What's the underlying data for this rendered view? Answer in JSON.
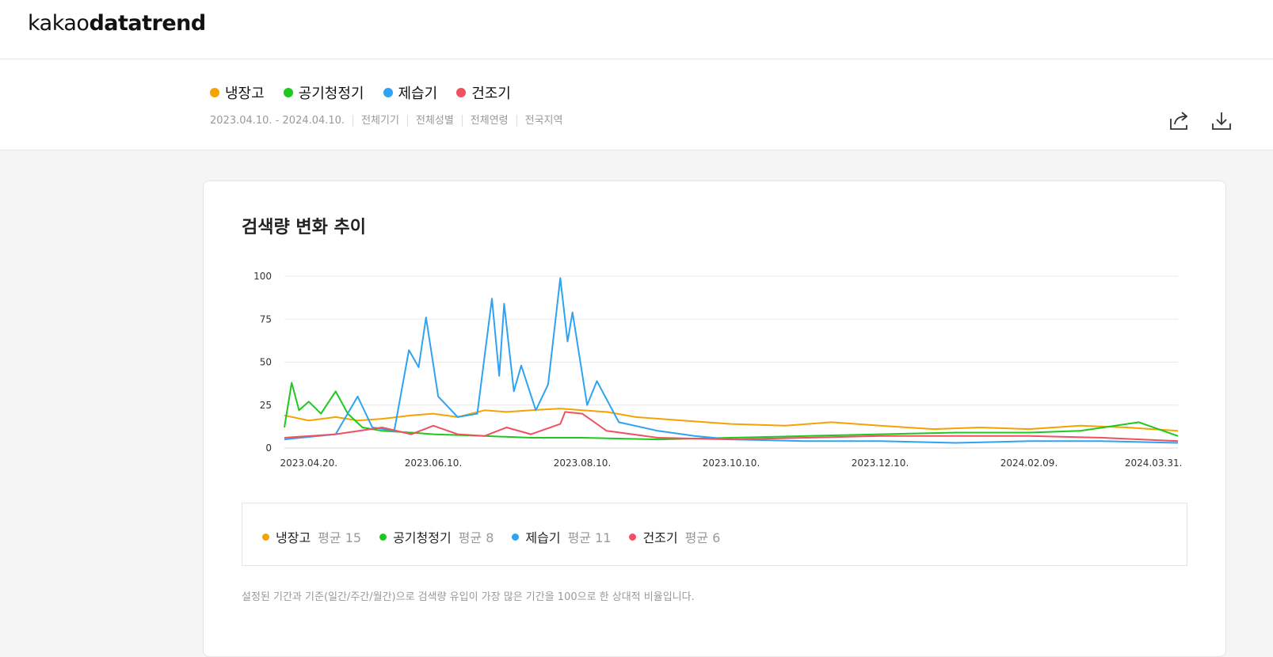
{
  "header": {
    "logo_light": "kakao",
    "logo_bold": "datatrend"
  },
  "keywords": [
    {
      "label": "냉장고",
      "color": "#f5a300"
    },
    {
      "label": "공기청정기",
      "color": "#1ec81e"
    },
    {
      "label": "제습기",
      "color": "#2ea3f2"
    },
    {
      "label": "건조기",
      "color": "#f0505f"
    }
  ],
  "filters": [
    "2023.04.10. - 2024.04.10.",
    "전체기기",
    "전체성별",
    "전체연령",
    "전국지역"
  ],
  "toolbar": {
    "share_icon": "share-icon",
    "download_icon": "download-icon"
  },
  "card": {
    "title": "검색량 변화 추이",
    "legend": [
      {
        "label": "냉장고",
        "avg": "평균 15",
        "color": "#f5a300"
      },
      {
        "label": "공기청정기",
        "avg": "평균 8",
        "color": "#1ec81e"
      },
      {
        "label": "제습기",
        "avg": "평균 11",
        "color": "#2ea3f2"
      },
      {
        "label": "건조기",
        "avg": "평균 6",
        "color": "#f0505f"
      }
    ],
    "note": "설정된 기간과 기준(일간/주간/월간)으로 검색량 유입이 가장 많은 기간을 100으로 한 상대적 비율입니다."
  },
  "chart_data": {
    "type": "line",
    "x_start": "2023-04-10",
    "x_end": "2024-04-10",
    "x_ticks": [
      "2023.04.20.",
      "2023.06.10.",
      "2023.08.10.",
      "2023.10.10.",
      "2023.12.10.",
      "2024.02.09.",
      "2024.03.31."
    ],
    "y_ticks": [
      0,
      25,
      50,
      75,
      100
    ],
    "ylim": [
      0,
      100
    ],
    "grid": true,
    "series": [
      {
        "name": "냉장고",
        "color": "#f5a300",
        "points": [
          [
            "2023-04-10",
            19
          ],
          [
            "2023-04-20",
            16
          ],
          [
            "2023-05-01",
            18
          ],
          [
            "2023-05-10",
            16
          ],
          [
            "2023-05-20",
            17
          ],
          [
            "2023-06-01",
            19
          ],
          [
            "2023-06-10",
            20
          ],
          [
            "2023-06-20",
            18
          ],
          [
            "2023-07-01",
            22
          ],
          [
            "2023-07-10",
            21
          ],
          [
            "2023-07-20",
            22
          ],
          [
            "2023-08-01",
            23
          ],
          [
            "2023-08-10",
            22
          ],
          [
            "2023-08-20",
            21
          ],
          [
            "2023-09-01",
            18
          ],
          [
            "2023-09-20",
            16
          ],
          [
            "2023-10-10",
            14
          ],
          [
            "2023-11-01",
            13
          ],
          [
            "2023-11-20",
            15
          ],
          [
            "2023-12-10",
            13
          ],
          [
            "2024-01-01",
            11
          ],
          [
            "2024-01-20",
            12
          ],
          [
            "2024-02-09",
            11
          ],
          [
            "2024-03-01",
            13
          ],
          [
            "2024-03-20",
            12
          ],
          [
            "2024-04-10",
            10
          ]
        ]
      },
      {
        "name": "공기청정기",
        "color": "#1ec81e",
        "points": [
          [
            "2023-04-10",
            12
          ],
          [
            "2023-04-13",
            38
          ],
          [
            "2023-04-16",
            22
          ],
          [
            "2023-04-20",
            27
          ],
          [
            "2023-04-25",
            20
          ],
          [
            "2023-05-01",
            33
          ],
          [
            "2023-05-06",
            20
          ],
          [
            "2023-05-12",
            12
          ],
          [
            "2023-05-20",
            10
          ],
          [
            "2023-06-01",
            9
          ],
          [
            "2023-06-10",
            8
          ],
          [
            "2023-07-01",
            7
          ],
          [
            "2023-07-20",
            6
          ],
          [
            "2023-08-10",
            6
          ],
          [
            "2023-09-10",
            5
          ],
          [
            "2023-10-10",
            6
          ],
          [
            "2023-11-10",
            7
          ],
          [
            "2023-12-10",
            8
          ],
          [
            "2024-01-10",
            9
          ],
          [
            "2024-02-09",
            9
          ],
          [
            "2024-03-01",
            10
          ],
          [
            "2024-03-25",
            15
          ],
          [
            "2024-04-10",
            7
          ]
        ]
      },
      {
        "name": "제습기",
        "color": "#2ea3f2",
        "points": [
          [
            "2023-04-10",
            5
          ],
          [
            "2023-05-01",
            8
          ],
          [
            "2023-05-10",
            30
          ],
          [
            "2023-05-16",
            12
          ],
          [
            "2023-05-25",
            10
          ],
          [
            "2023-05-31",
            57
          ],
          [
            "2023-06-04",
            47
          ],
          [
            "2023-06-07",
            76
          ],
          [
            "2023-06-12",
            30
          ],
          [
            "2023-06-20",
            18
          ],
          [
            "2023-06-28",
            20
          ],
          [
            "2023-07-04",
            87
          ],
          [
            "2023-07-07",
            42
          ],
          [
            "2023-07-09",
            84
          ],
          [
            "2023-07-13",
            33
          ],
          [
            "2023-07-16",
            48
          ],
          [
            "2023-07-22",
            22
          ],
          [
            "2023-07-27",
            37
          ],
          [
            "2023-08-01",
            99
          ],
          [
            "2023-08-04",
            62
          ],
          [
            "2023-08-06",
            79
          ],
          [
            "2023-08-12",
            25
          ],
          [
            "2023-08-16",
            39
          ],
          [
            "2023-08-25",
            15
          ],
          [
            "2023-09-10",
            10
          ],
          [
            "2023-09-25",
            7
          ],
          [
            "2023-10-10",
            5
          ],
          [
            "2023-11-10",
            4
          ],
          [
            "2023-12-10",
            4
          ],
          [
            "2024-01-10",
            3
          ],
          [
            "2024-02-09",
            4
          ],
          [
            "2024-03-10",
            4
          ],
          [
            "2024-04-10",
            3
          ]
        ]
      },
      {
        "name": "건조기",
        "color": "#f0505f",
        "points": [
          [
            "2023-04-10",
            6
          ],
          [
            "2023-05-01",
            8
          ],
          [
            "2023-05-20",
            12
          ],
          [
            "2023-06-01",
            8
          ],
          [
            "2023-06-10",
            13
          ],
          [
            "2023-06-20",
            8
          ],
          [
            "2023-07-01",
            7
          ],
          [
            "2023-07-10",
            12
          ],
          [
            "2023-07-20",
            8
          ],
          [
            "2023-08-01",
            14
          ],
          [
            "2023-08-03",
            21
          ],
          [
            "2023-08-10",
            20
          ],
          [
            "2023-08-20",
            10
          ],
          [
            "2023-09-10",
            6
          ],
          [
            "2023-10-10",
            5
          ],
          [
            "2023-11-10",
            6
          ],
          [
            "2023-12-10",
            7
          ],
          [
            "2024-01-10",
            7
          ],
          [
            "2024-02-09",
            7
          ],
          [
            "2024-03-10",
            6
          ],
          [
            "2024-04-10",
            4
          ]
        ]
      }
    ]
  }
}
